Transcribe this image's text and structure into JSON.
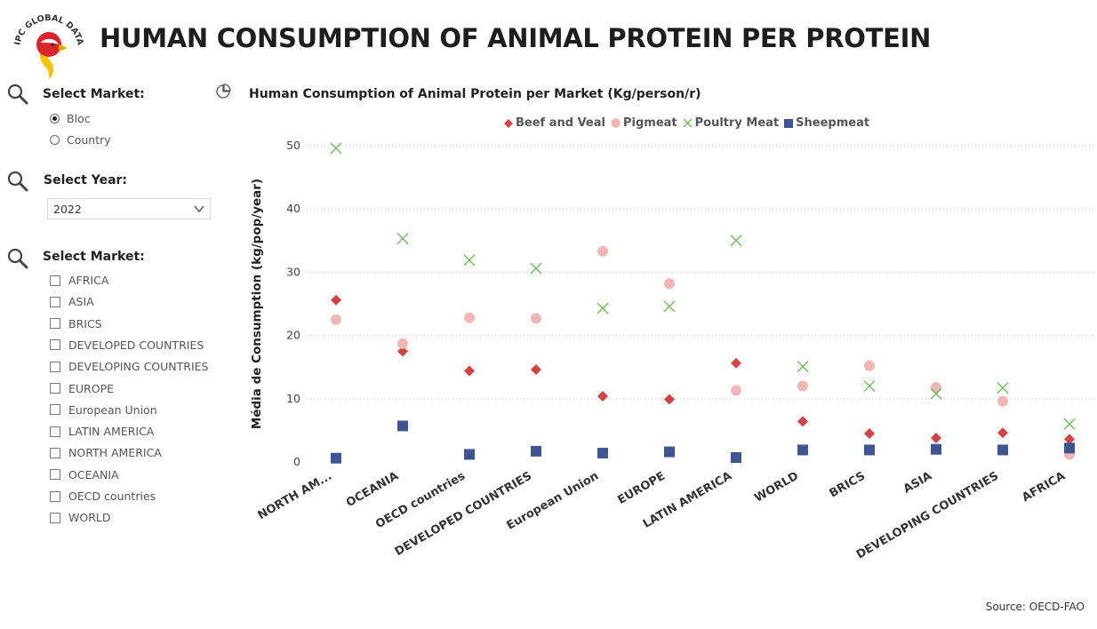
{
  "header": {
    "logo_text": "IPC GLOBAL DATA",
    "title": "HUMAN CONSUMPTION OF ANIMAL PROTEIN PER PROTEIN"
  },
  "filters": {
    "market_type": {
      "label": "Select Market:",
      "options": [
        {
          "label": "Bloc",
          "selected": true
        },
        {
          "label": "Country",
          "selected": false
        }
      ]
    },
    "year": {
      "label": "Select Year:",
      "value": "2022"
    },
    "market": {
      "label": "Select Market:",
      "options": [
        "AFRICA",
        "ASIA",
        "BRICS",
        "DEVELOPED COUNTRIES",
        "DEVELOPING COUNTRIES",
        "EUROPE",
        "European Union",
        "LATIN AMERICA",
        "NORTH AMERICA",
        "OCEANIA",
        "OECD countries",
        "WORLD"
      ]
    }
  },
  "source": "Source: OECD-FAO",
  "chart_data": {
    "type": "scatter",
    "title": "Human Consumption of Animal Protein per Market (Kg/person/r)",
    "xlabel": "",
    "ylabel": "Média de Consumption (kg/pop/year)",
    "ylim": [
      0,
      50
    ],
    "yticks": [
      0,
      10,
      20,
      30,
      40,
      50
    ],
    "grid": true,
    "legend_position": "top",
    "categories": [
      "NORTH AM...",
      "OCEANIA",
      "OECD countries",
      "DEVELOPED COUNTRIES",
      "European Union",
      "EUROPE",
      "LATIN AMERICA",
      "WORLD",
      "BRICS",
      "ASIA",
      "DEVELOPING COUNTRIES",
      "AFRICA"
    ],
    "series": [
      {
        "name": "Beef and Veal",
        "color": "#d04444",
        "marker": "diamond",
        "values": [
          25.6,
          17.5,
          14.4,
          14.6,
          10.4,
          9.9,
          15.6,
          6.4,
          4.5,
          3.8,
          4.6,
          3.6
        ]
      },
      {
        "name": "Pigmeat",
        "color": "#f0b6b6",
        "marker": "circle",
        "values": [
          22.5,
          18.7,
          22.8,
          22.7,
          33.3,
          28.2,
          11.3,
          12.0,
          15.2,
          11.8,
          9.6,
          1.2
        ]
      },
      {
        "name": "Poultry Meat",
        "color": "#6dbb5d",
        "marker": "x",
        "values": [
          49.6,
          35.3,
          31.9,
          30.6,
          24.3,
          24.6,
          35.0,
          15.1,
          12.0,
          10.8,
          11.7,
          6.0
        ]
      },
      {
        "name": "Sheepmeat",
        "color": "#3f5592",
        "marker": "square",
        "values": [
          0.6,
          5.7,
          1.2,
          1.7,
          1.4,
          1.6,
          0.7,
          1.9,
          1.9,
          2.0,
          1.9,
          2.2
        ]
      }
    ]
  }
}
